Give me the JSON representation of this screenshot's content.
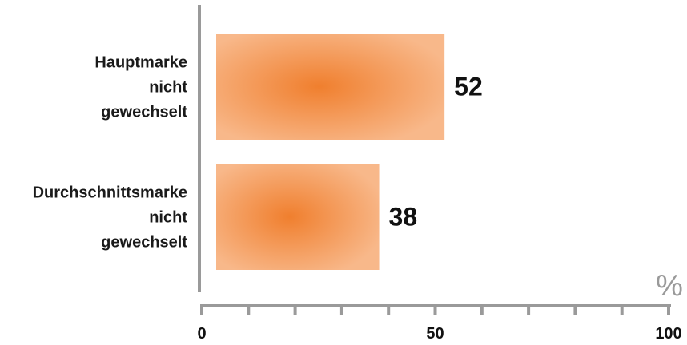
{
  "chart_data": {
    "type": "bar",
    "orientation": "horizontal",
    "categories": [
      [
        "Hauptmarke",
        "nicht",
        "gewechselt"
      ],
      [
        "Durchschnittsmarke",
        "nicht",
        "gewechselt"
      ]
    ],
    "values": [
      52,
      38
    ],
    "value_labels": [
      "52",
      "38"
    ],
    "xlim": [
      0,
      100
    ],
    "x_ticks": [
      0,
      50,
      100
    ],
    "x_tick_labels": [
      "0",
      "50",
      "100"
    ],
    "unit": "%",
    "grid": false,
    "colors": {
      "bar_center": "#f07f2e",
      "bar_edge": "#f8b88a",
      "axis": "#9a9a9a",
      "text": "#111111"
    }
  }
}
